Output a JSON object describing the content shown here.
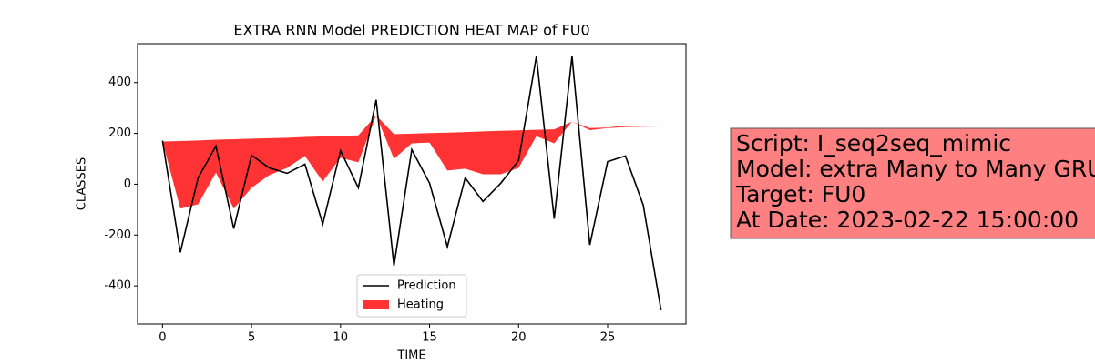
{
  "chart_data": {
    "type": "line",
    "title": "EXTRA RNN Model PREDICTION HEAT MAP of FU0",
    "xlabel": "TIME",
    "ylabel": "CLASSES",
    "x": [
      0,
      1,
      2,
      3,
      4,
      5,
      6,
      7,
      8,
      9,
      10,
      11,
      12,
      13,
      14,
      15,
      16,
      17,
      18,
      19,
      20,
      21,
      22,
      23,
      24,
      25,
      26,
      27,
      28
    ],
    "series": [
      {
        "name": "Prediction",
        "color": "#000000",
        "values": [
          171,
          -268,
          25,
          150,
          -175,
          114,
          64,
          43,
          79,
          -157,
          132,
          -14,
          332,
          -321,
          136,
          4,
          -246,
          25,
          -68,
          4,
          93,
          504,
          -136,
          504,
          -239,
          89,
          111,
          -82,
          -496
        ]
      },
      {
        "name": "Heating",
        "color": "#ff0000",
        "upper": [
          168,
          170,
          172,
          175,
          177,
          179,
          181,
          183,
          186,
          188,
          190,
          192,
          271,
          197,
          199,
          201,
          203,
          205,
          208,
          210,
          212,
          214,
          216,
          246,
          221,
          223,
          231,
          227,
          229
        ],
        "lower": [
          168,
          -96,
          -79,
          46,
          -96,
          -14,
          36,
          64,
          111,
          11,
          104,
          86,
          271,
          100,
          161,
          164,
          54,
          61,
          39,
          39,
          64,
          189,
          161,
          246,
          213,
          221,
          225,
          226,
          227
        ]
      }
    ],
    "xlim": [
      -1.4,
      29.4
    ],
    "ylim": [
      -550,
      553
    ],
    "xticks": [
      0,
      5,
      10,
      15,
      20,
      25
    ],
    "yticks": [
      -400,
      -200,
      0,
      200,
      400
    ],
    "legend": "lower center",
    "annotation": [
      "Script: I_seq2seq_mimic",
      "Model: extra Many to Many GRU",
      "Target: FU0",
      "At Date: 2023-02-22 15:00:00"
    ]
  }
}
